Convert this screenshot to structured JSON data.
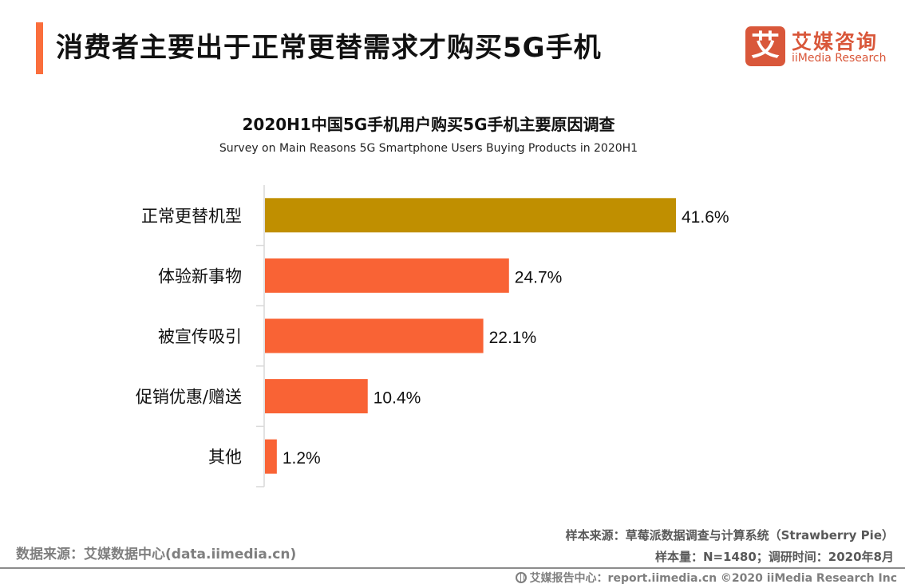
{
  "header": {
    "title": "消费者主要出于正常更替需求才购买5G手机",
    "accent_color": "#fa6e3c"
  },
  "logo": {
    "icon_glyph": "艾",
    "name_cn": "艾媒咨询",
    "name_en": "iiMedia Research",
    "color": "#d9573a"
  },
  "chart_data": {
    "type": "bar",
    "orientation": "horizontal",
    "title": "2020H1中国5G手机用户购买5G手机主要原因调查",
    "subtitle": "Survey on Main Reasons 5G Smartphone Users Buying Products in 2020H1",
    "categories": [
      "正常更替机型",
      "体验新事物",
      "被宣传吸引",
      "促销优惠/赠送",
      "其他"
    ],
    "values": [
      41.6,
      24.7,
      22.1,
      10.4,
      1.2
    ],
    "value_labels": [
      "41.6%",
      "24.7%",
      "22.1%",
      "10.4%",
      "1.2%"
    ],
    "unit": "%",
    "xlabel": "",
    "ylabel": "",
    "xlim": [
      0,
      41.6
    ],
    "grid": false,
    "legend": "none",
    "colors": [
      "#c08f00",
      "#f96335",
      "#f96335",
      "#f96335",
      "#f96335"
    ],
    "axis_color": "#d9d9d9"
  },
  "footer": {
    "data_source": "数据来源：艾媒数据中心(data.iimedia.cn)",
    "sample_source": "样本来源：草莓派数据调查与计算系统（Strawberry Pie）",
    "sample_info": "样本量：N=1480；调研时间：2020年8月",
    "report_center": "艾媒报告中心：report.iimedia.cn   ©2020  iiMedia Research  Inc"
  }
}
